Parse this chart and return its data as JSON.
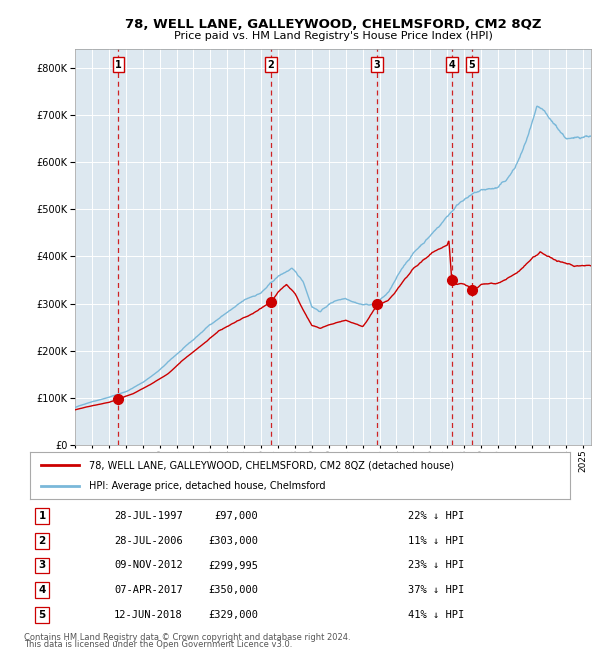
{
  "title": "78, WELL LANE, GALLEYWOOD, CHELMSFORD, CM2 8QZ",
  "subtitle": "Price paid vs. HM Land Registry's House Price Index (HPI)",
  "footer_line1": "Contains HM Land Registry data © Crown copyright and database right 2024.",
  "footer_line2": "This data is licensed under the Open Government Licence v3.0.",
  "legend_line1": "78, WELL LANE, GALLEYWOOD, CHELMSFORD, CM2 8QZ (detached house)",
  "legend_line2": "HPI: Average price, detached house, Chelmsford",
  "sale_dates": [
    1997.57,
    2006.57,
    2012.86,
    2017.27,
    2018.45
  ],
  "sale_prices": [
    97000,
    303000,
    299995,
    350000,
    329000
  ],
  "sale_labels": [
    "1",
    "2",
    "3",
    "4",
    "5"
  ],
  "sale_table": [
    [
      "1",
      "28-JUL-1997",
      "£97,000",
      "22% ↓ HPI"
    ],
    [
      "2",
      "28-JUL-2006",
      "£303,000",
      "11% ↓ HPI"
    ],
    [
      "3",
      "09-NOV-2012",
      "£299,995",
      "23% ↓ HPI"
    ],
    [
      "4",
      "07-APR-2017",
      "£350,000",
      "37% ↓ HPI"
    ],
    [
      "5",
      "12-JUN-2018",
      "£329,000",
      "41% ↓ HPI"
    ]
  ],
  "hpi_color": "#7ab8d9",
  "sale_color": "#cc0000",
  "bg_color": "#dde8f0",
  "grid_color": "#ffffff",
  "ylim": [
    0,
    840000
  ],
  "xlim_start": 1995.0,
  "xlim_end": 2025.5,
  "hpi_keypoints": {
    "1995.0": 80000,
    "1996.0": 93000,
    "1997.0": 103000,
    "1998.0": 115000,
    "1999.0": 135000,
    "2000.0": 162000,
    "2001.0": 195000,
    "2002.0": 225000,
    "2003.0": 258000,
    "2004.0": 285000,
    "2005.0": 308000,
    "2006.0": 325000,
    "2007.0": 358000,
    "2007.8": 375000,
    "2008.5": 345000,
    "2009.0": 295000,
    "2009.5": 285000,
    "2010.0": 300000,
    "2010.5": 310000,
    "2011.0": 315000,
    "2011.5": 310000,
    "2012.0": 305000,
    "2012.5": 305000,
    "2013.0": 315000,
    "2013.5": 330000,
    "2014.0": 360000,
    "2014.5": 390000,
    "2015.0": 415000,
    "2015.5": 435000,
    "2016.0": 455000,
    "2016.5": 475000,
    "2017.0": 498000,
    "2017.5": 520000,
    "2018.0": 540000,
    "2018.5": 548000,
    "2019.0": 555000,
    "2019.5": 558000,
    "2020.0": 560000,
    "2020.5": 575000,
    "2021.0": 600000,
    "2021.5": 640000,
    "2022.0": 690000,
    "2022.3": 720000,
    "2022.7": 710000,
    "2023.0": 690000,
    "2023.5": 670000,
    "2024.0": 650000,
    "2024.5": 645000,
    "2025.3": 655000
  },
  "prop_keypoints": {
    "1995.0": 75000,
    "1996.0": 83000,
    "1997.0": 90000,
    "1997.57": 97000,
    "1998.5": 110000,
    "1999.5": 130000,
    "2000.5": 152000,
    "2001.5": 185000,
    "2002.5": 215000,
    "2003.5": 245000,
    "2004.5": 262000,
    "2005.5": 278000,
    "2006.57": 303000,
    "2007.0": 325000,
    "2007.5": 340000,
    "2008.0": 320000,
    "2008.5": 285000,
    "2009.0": 255000,
    "2009.5": 248000,
    "2010.0": 255000,
    "2010.5": 262000,
    "2011.0": 268000,
    "2011.5": 262000,
    "2012.0": 255000,
    "2012.86": 299995,
    "2013.5": 310000,
    "2014.0": 330000,
    "2014.5": 355000,
    "2015.0": 375000,
    "2015.5": 390000,
    "2016.0": 405000,
    "2016.5": 415000,
    "2017.0": 425000,
    "2017.1": 435000,
    "2017.27": 350000,
    "2017.5": 340000,
    "2018.0": 340000,
    "2018.45": 329000,
    "2018.8": 330000,
    "2019.0": 335000,
    "2019.5": 338000,
    "2020.0": 340000,
    "2020.5": 348000,
    "2021.0": 360000,
    "2021.5": 375000,
    "2022.0": 395000,
    "2022.5": 410000,
    "2023.0": 400000,
    "2023.5": 390000,
    "2024.0": 385000,
    "2024.5": 378000,
    "2025.3": 380000
  }
}
